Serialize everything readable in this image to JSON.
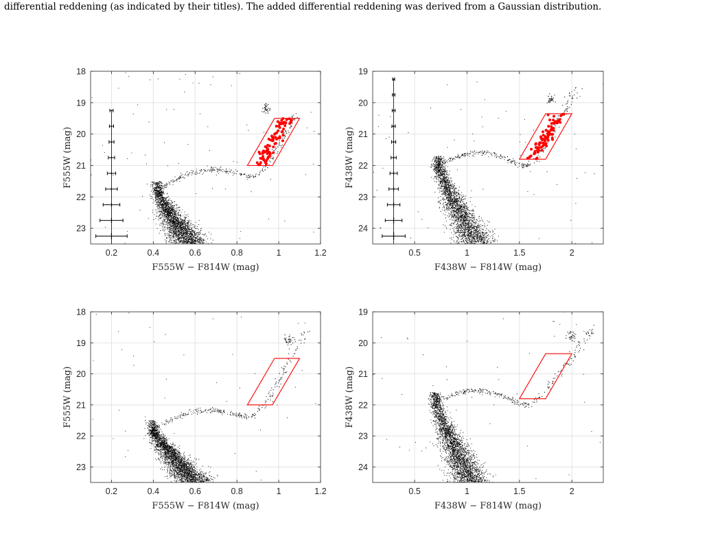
{
  "caption": "differential reddening (as indicated by their titles). The added differential reddening was derived from a Gaussian distribution.",
  "colors": {
    "points": "#000000",
    "rgb_region": "#ff0000",
    "grid": "#e3e3e3",
    "axis": "#262626"
  },
  "chart_data": [
    {
      "type": "scatter",
      "panel": "top-left",
      "xlabel": "F555W − F814W (mag)",
      "ylabel": "F555W (mag)",
      "xlim": [
        0.1,
        1.2
      ],
      "ylim": [
        23.5,
        18
      ],
      "y_inverted": true,
      "grid": true,
      "xticks": [
        0.2,
        0.4,
        0.6,
        0.8,
        1,
        1.2
      ],
      "yticks": [
        18,
        19,
        20,
        21,
        22,
        23
      ],
      "xticklabels": [
        "0.2",
        "0.4",
        "0.6",
        "0.8",
        "1",
        "1.2"
      ],
      "yticklabels": [
        "18",
        "19",
        "20",
        "21",
        "22",
        "23"
      ],
      "cmd_shape": {
        "ms_bottom": [
          0.58,
          23.5
        ],
        "turnoff": [
          0.42,
          21.8
        ],
        "subgiant_end": [
          0.9,
          21.3
        ],
        "rgb_top": [
          1.08,
          19.4
        ],
        "red_clump": [
          0.94,
          19.2
        ],
        "n_ms": 2400,
        "n_sg": 230,
        "n_rgb": 90,
        "n_field": 70
      },
      "selection_box": [
        [
          0.85,
          21.0
        ],
        [
          0.97,
          21.0
        ],
        [
          1.1,
          19.5
        ],
        [
          0.98,
          19.5
        ]
      ],
      "highlighted_points": {
        "count": 85,
        "color": "#ff0000"
      },
      "error_bars": {
        "x": 0.2,
        "y": [
          19.25,
          19.75,
          20.25,
          20.75,
          21.25,
          21.75,
          22.25,
          22.75,
          23.25
        ],
        "xerr": [
          0.008,
          0.01,
          0.012,
          0.015,
          0.02,
          0.028,
          0.04,
          0.055,
          0.075
        ],
        "yerr": [
          0.02,
          0.02,
          0.025,
          0.03,
          0.035,
          0.045,
          0.06,
          0.08,
          0.1
        ]
      }
    },
    {
      "type": "scatter",
      "panel": "top-right",
      "xlabel": "F438W − F814W (mag)",
      "ylabel": "F438W (mag)",
      "xlim": [
        0.1,
        2.3
      ],
      "ylim": [
        24.5,
        19
      ],
      "y_inverted": true,
      "grid": true,
      "xticks": [
        0.5,
        1,
        1.5,
        2
      ],
      "yticks": [
        19,
        20,
        21,
        22,
        23,
        24
      ],
      "xticklabels": [
        "0.5",
        "1",
        "1.5",
        "2"
      ],
      "yticklabels": [
        "19",
        "20",
        "21",
        "22",
        "23",
        "24"
      ],
      "cmd_shape": {
        "ms_bottom": [
          1.1,
          24.5
        ],
        "turnoff": [
          0.73,
          22.0
        ],
        "subgiant_end": [
          1.6,
          22.0
        ],
        "rgb_top": [
          2.05,
          19.5
        ],
        "red_clump": [
          1.8,
          19.9
        ],
        "n_ms": 2400,
        "n_sg": 230,
        "n_rgb": 90,
        "n_field": 70
      },
      "selection_box": [
        [
          1.5,
          21.8
        ],
        [
          1.75,
          21.8
        ],
        [
          2.0,
          20.35
        ],
        [
          1.75,
          20.35
        ]
      ],
      "highlighted_points": {
        "count": 85,
        "color": "#ff0000"
      },
      "error_bars": {
        "x": 0.3,
        "y": [
          19.25,
          19.75,
          20.25,
          20.75,
          21.25,
          21.75,
          22.25,
          22.75,
          23.25,
          23.75,
          24.25
        ],
        "xerr": [
          0.01,
          0.012,
          0.014,
          0.016,
          0.02,
          0.025,
          0.035,
          0.045,
          0.06,
          0.08,
          0.11
        ],
        "yerr": [
          0.02,
          0.02,
          0.025,
          0.03,
          0.035,
          0.04,
          0.05,
          0.06,
          0.08,
          0.1,
          0.12
        ]
      }
    },
    {
      "type": "scatter",
      "panel": "bottom-left",
      "xlabel": "F555W − F814W (mag)",
      "ylabel": "F555W (mag)",
      "xlim": [
        0.1,
        1.2
      ],
      "ylim": [
        23.5,
        18
      ],
      "y_inverted": true,
      "grid": true,
      "xticks": [
        0.2,
        0.4,
        0.6,
        0.8,
        1,
        1.2
      ],
      "yticks": [
        18,
        19,
        20,
        21,
        22,
        23
      ],
      "xticklabels": [
        "0.2",
        "0.4",
        "0.6",
        "0.8",
        "1",
        "1.2"
      ],
      "yticklabels": [
        "18",
        "19",
        "20",
        "21",
        "22",
        "23"
      ],
      "cmd_shape": {
        "ms_bottom": [
          0.6,
          23.5
        ],
        "turnoff": [
          0.4,
          21.8
        ],
        "subgiant_end": [
          0.88,
          21.35
        ],
        "rgb_top": [
          1.13,
          18.5
        ],
        "red_clump": [
          1.05,
          18.9
        ],
        "n_ms": 2600,
        "n_sg": 230,
        "n_rgb": 90,
        "n_field": 45
      },
      "selection_box": [
        [
          0.85,
          21.0
        ],
        [
          0.97,
          21.0
        ],
        [
          1.1,
          19.5
        ],
        [
          0.98,
          19.5
        ]
      ],
      "highlighted_points": {
        "count": 0,
        "color": "#ff0000"
      },
      "error_bars": null
    },
    {
      "type": "scatter",
      "panel": "bottom-right",
      "xlabel": "F438W − F814W (mag)",
      "ylabel": "F438W (mag)",
      "xlim": [
        0.1,
        2.3
      ],
      "ylim": [
        24.5,
        19
      ],
      "y_inverted": true,
      "grid": true,
      "xticks": [
        0.5,
        1,
        1.5,
        2
      ],
      "yticks": [
        19,
        20,
        21,
        22,
        23,
        24
      ],
      "xticklabels": [
        "0.5",
        "1",
        "1.5",
        "2"
      ],
      "yticklabels": [
        "19",
        "20",
        "21",
        "22",
        "23",
        "24"
      ],
      "cmd_shape": {
        "ms_bottom": [
          1.05,
          24.5
        ],
        "turnoff": [
          0.7,
          21.9
        ],
        "subgiant_end": [
          1.6,
          22.0
        ],
        "rgb_top": [
          2.2,
          19.5
        ],
        "red_clump": [
          2.0,
          19.8
        ],
        "n_ms": 2600,
        "n_sg": 230,
        "n_rgb": 90,
        "n_field": 45
      },
      "selection_box": [
        [
          1.5,
          21.8
        ],
        [
          1.75,
          21.8
        ],
        [
          2.0,
          20.35
        ],
        [
          1.75,
          20.35
        ]
      ],
      "highlighted_points": {
        "count": 0,
        "color": "#ff0000"
      },
      "error_bars": null
    }
  ]
}
